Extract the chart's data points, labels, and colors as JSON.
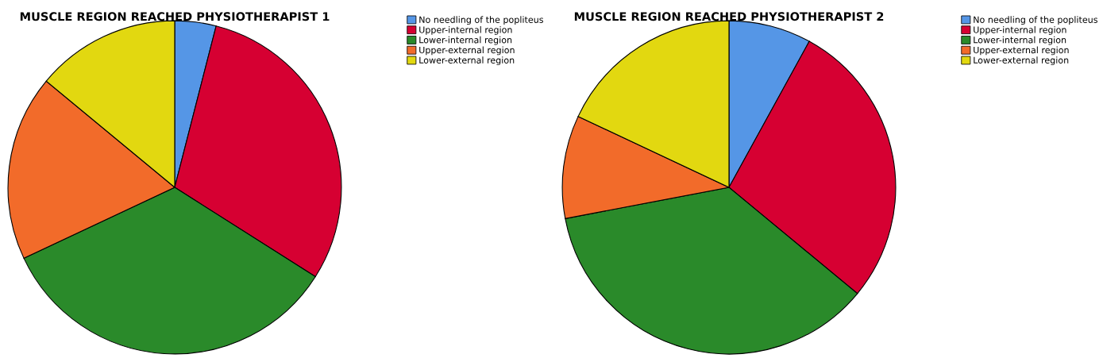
{
  "chart_data": [
    {
      "type": "pie",
      "title": "MUSCLE REGION REACHED PHYSIOTHERAPIST 1",
      "categories": [
        "No needling of the popliteus",
        "Upper-internal region",
        "Lower-internal region",
        "Upper-external region",
        "Lower-external region"
      ],
      "values": [
        4,
        30,
        34,
        18,
        14
      ],
      "colors": [
        "#5596e6",
        "#d60032",
        "#2a8a2a",
        "#f26b2a",
        "#e2d810"
      ],
      "legend": "top right"
    },
    {
      "type": "pie",
      "title": "MUSCLE REGION REACHED PHYSIOTHERAPIST 2",
      "categories": [
        "No needling of the popliteus",
        "Upper-internal region",
        "Lower-internal region",
        "Upper-external region",
        "Lower-external region"
      ],
      "values": [
        8,
        28,
        36,
        10,
        18
      ],
      "colors": [
        "#5596e6",
        "#d60032",
        "#2a8a2a",
        "#f26b2a",
        "#e2d810"
      ],
      "legend": "top right"
    }
  ]
}
